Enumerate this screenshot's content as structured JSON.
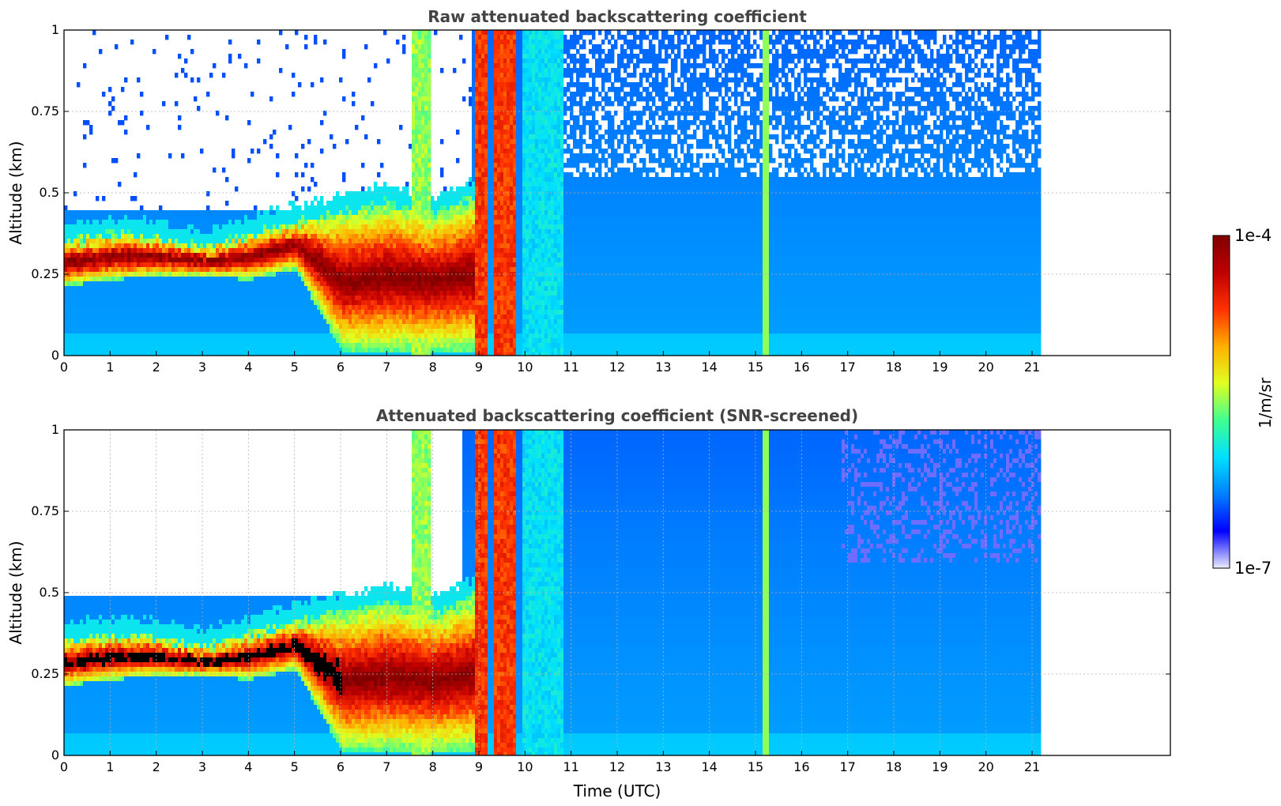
{
  "chart_data": {
    "type": "heatmap",
    "colorbar": {
      "label": "1/m/sr",
      "max_label": "1e-4",
      "min_label": "1e-7",
      "vmin": 1e-07,
      "vmax": 0.0001,
      "scale": "log",
      "colormap": "jet",
      "stops": [
        "#ececff",
        "#0000ff",
        "#0080ff",
        "#00e0ff",
        "#40ff90",
        "#e0ff20",
        "#ffb000",
        "#ff3000",
        "#c00000",
        "#800000"
      ]
    },
    "panels": [
      {
        "id": "raw",
        "title": "Raw attenuated backscattering coefficient",
        "ylabel": "Altitude (km)",
        "xlim": [
          0,
          24
        ],
        "ylim": [
          0,
          1
        ],
        "data_extent_hours": [
          0,
          21.15
        ],
        "xticks": [
          "0",
          "1",
          "2",
          "3",
          "4",
          "5",
          "6",
          "7",
          "8",
          "9",
          "10",
          "11",
          "12",
          "13",
          "14",
          "15",
          "16",
          "17",
          "18",
          "19",
          "20",
          "21"
        ],
        "yticks": [
          "0",
          "0.25",
          "0.5",
          "0.75",
          "1"
        ],
        "yticks_values": [
          0,
          0.25,
          0.5,
          0.75,
          1
        ],
        "grid": "y-only",
        "cloud_layer_km": {
          "times": [
            0,
            1,
            2,
            3,
            4,
            5,
            6,
            7,
            8,
            8.9
          ],
          "base": [
            0.22,
            0.24,
            0.25,
            0.25,
            0.24,
            0.27,
            0.02,
            0.02,
            0.02,
            0.02
          ],
          "top": [
            0.36,
            0.38,
            0.37,
            0.34,
            0.38,
            0.42,
            0.45,
            0.48,
            0.45,
            0.5
          ]
        },
        "precipitation_bands_hours": [
          [
            8.85,
            9.15
          ],
          [
            9.3,
            9.8
          ]
        ],
        "spike_hours": [
          15.2
        ]
      },
      {
        "id": "snr",
        "title": "Attenuated backscattering coefficient (SNR-screened)",
        "ylabel": "Altitude (km)",
        "xlabel": "Time (UTC)",
        "xlim": [
          0,
          24
        ],
        "ylim": [
          0,
          1
        ],
        "data_extent_hours": [
          0,
          21.15
        ],
        "xticks": [
          "0",
          "1",
          "2",
          "3",
          "4",
          "5",
          "6",
          "7",
          "8",
          "9",
          "10",
          "11",
          "12",
          "13",
          "14",
          "15",
          "16",
          "17",
          "18",
          "19",
          "20",
          "21"
        ],
        "yticks": [
          "0",
          "0.25",
          "0.5",
          "0.75",
          "1"
        ],
        "yticks_values": [
          0,
          0.25,
          0.5,
          0.75,
          1
        ],
        "grid": "both",
        "cloud_layer_km": {
          "times": [
            0,
            1,
            2,
            3,
            4,
            5,
            6,
            7,
            8,
            8.9
          ],
          "base": [
            0.22,
            0.24,
            0.25,
            0.25,
            0.24,
            0.27,
            0.02,
            0.02,
            0.02,
            0.02
          ],
          "top": [
            0.36,
            0.38,
            0.37,
            0.34,
            0.38,
            0.42,
            0.45,
            0.48,
            0.45,
            0.5
          ]
        },
        "precipitation_bands_hours": [
          [
            8.85,
            9.15
          ],
          [
            9.3,
            9.8
          ]
        ],
        "spike_hours": [
          15.2
        ]
      }
    ]
  }
}
